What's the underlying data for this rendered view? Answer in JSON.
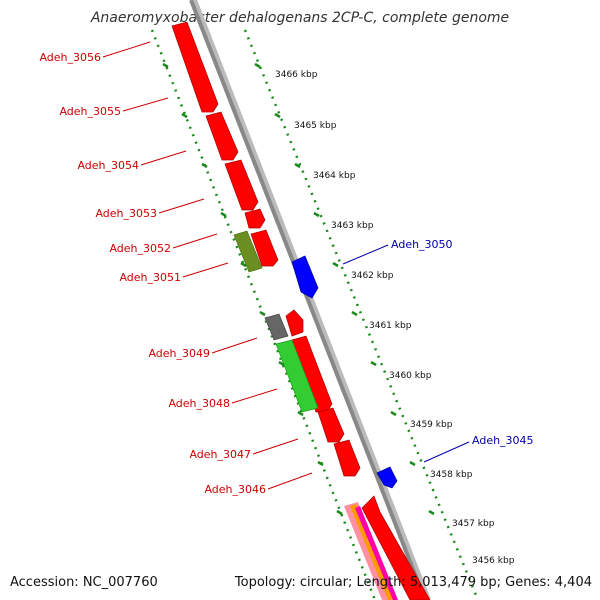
{
  "title": "Anaeromyxobacter dehalogenans 2CP-C, complete genome",
  "footer": {
    "accession": "Accession: NC_007760",
    "info": "Topology: circular; Length: 5,013,479 bp; Genes: 4,404"
  },
  "scale_labels": [
    "3466 kbp",
    "3465 kbp",
    "3464 kbp",
    "3463 kbp",
    "3462 kbp",
    "3461 kbp",
    "3460 kbp",
    "3459 kbp",
    "3458 kbp",
    "3457 kbp",
    "3456 kbp"
  ],
  "gene_labels_left": [
    "Adeh_3056",
    "Adeh_3055",
    "Adeh_3054",
    "Adeh_3053",
    "Adeh_3052",
    "Adeh_3051",
    "Adeh_3049",
    "Adeh_3048",
    "Adeh_3047",
    "Adeh_3046"
  ],
  "gene_labels_right": [
    "Adeh_3050",
    "Adeh_3045"
  ],
  "colors": {
    "forward_cds": "#ff0000",
    "reverse_cds": "#0000ff",
    "green_feature": "#33cc33",
    "olive_feature": "#6b8e23",
    "gray_feature": "#666666",
    "backbone": "#888888",
    "tick_line": "#007700",
    "left_label": "#cc0000",
    "right_label": "#0000aa"
  }
}
